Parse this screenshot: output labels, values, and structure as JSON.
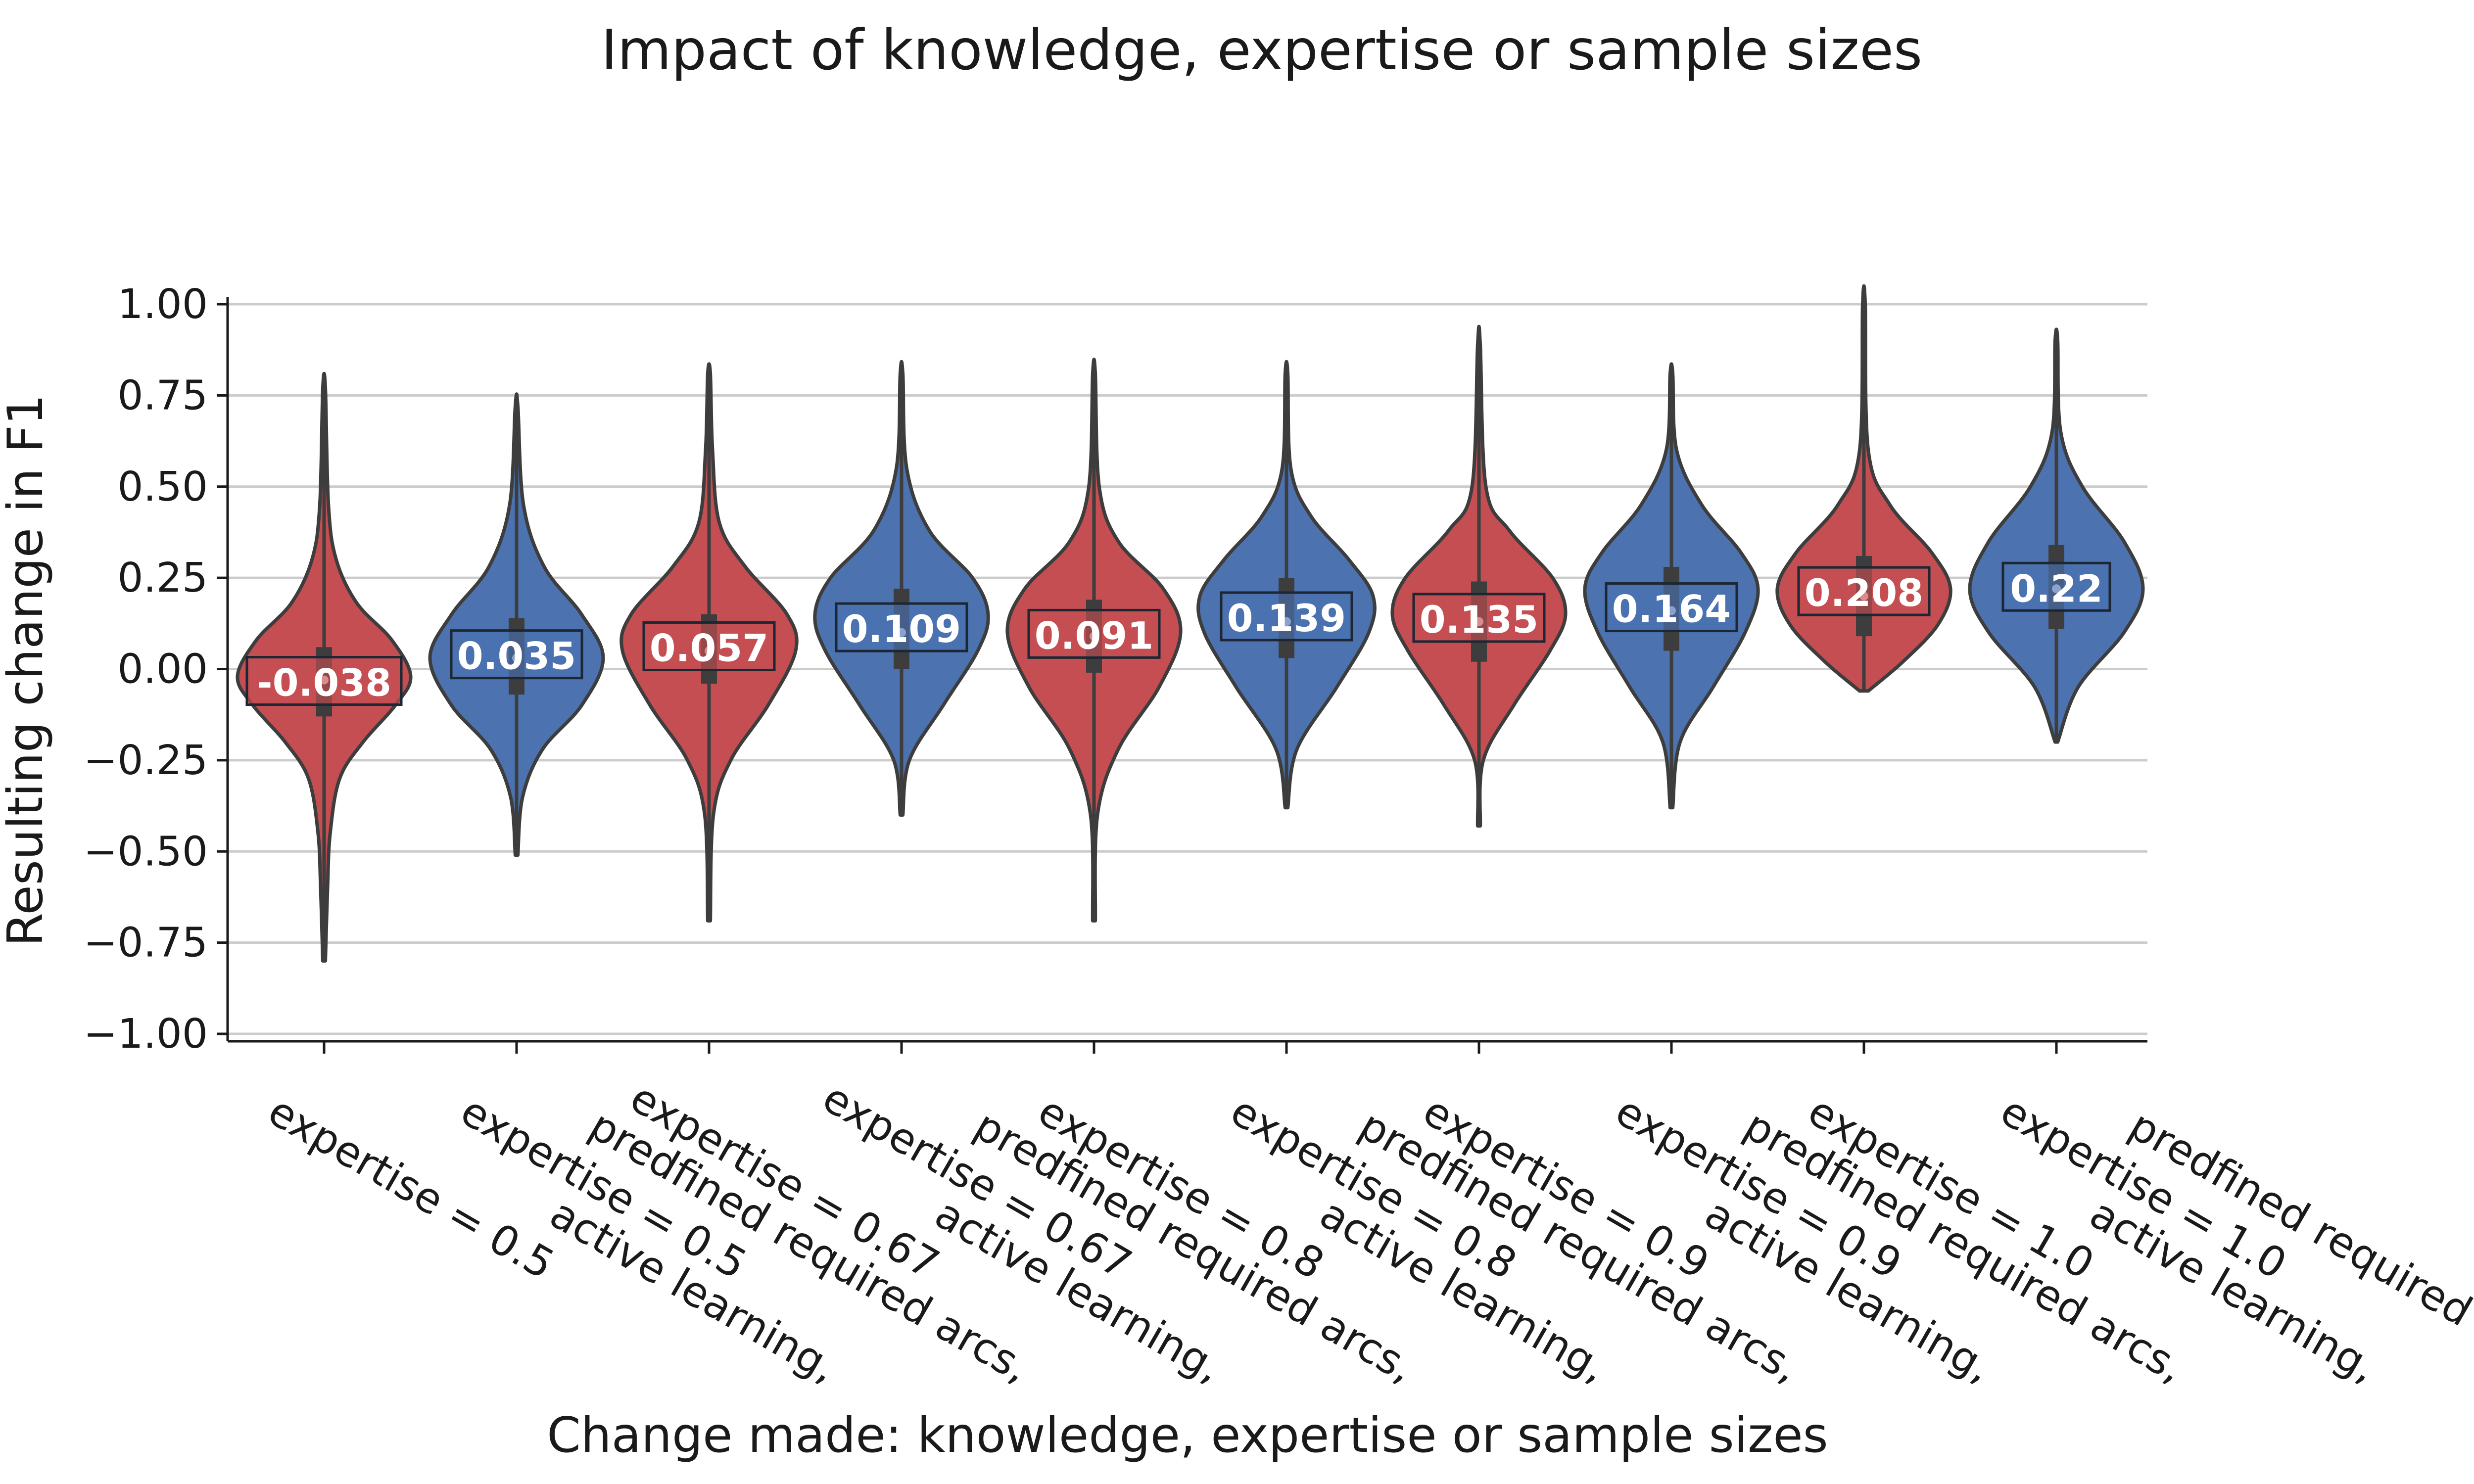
{
  "chart_data": {
    "type": "violin",
    "title": "Impact of knowledge, expertise or sample sizes",
    "xlabel": "Change made: knowledge, expertise or sample sizes",
    "ylabel": "Resulting change in F1",
    "ylim": [
      -1.0,
      1.0
    ],
    "yticks": [
      "1.00",
      "0.75",
      "0.50",
      "0.25",
      "0.00",
      "−0.25",
      "−0.50",
      "−0.75",
      "−1.00"
    ],
    "ytick_values": [
      1.0,
      0.75,
      0.5,
      0.25,
      0.0,
      -0.25,
      -0.5,
      -0.75,
      -1.0
    ],
    "grid": "horizontal",
    "colors": {
      "active_learning": "#c44e52",
      "predefined_arcs": "#4c72b0",
      "outline": "#3d3d3d"
    },
    "violins": [
      {
        "line1": "active learning,",
        "line2": "expertise = 0.5",
        "mean_label": "-0.038",
        "mean": -0.038,
        "median": -0.03,
        "q1": -0.13,
        "q3": 0.06,
        "min": -0.8,
        "max": 0.77,
        "group": "active_learning",
        "profile": [
          [
            -0.8,
            0.015
          ],
          [
            -0.6,
            0.04
          ],
          [
            -0.45,
            0.07
          ],
          [
            -0.3,
            0.18
          ],
          [
            -0.2,
            0.45
          ],
          [
            -0.1,
            0.82
          ],
          [
            -0.02,
            1.0
          ],
          [
            0.08,
            0.78
          ],
          [
            0.18,
            0.38
          ],
          [
            0.3,
            0.14
          ],
          [
            0.45,
            0.05
          ],
          [
            0.77,
            0.015
          ]
        ]
      },
      {
        "line1": "predfined required arcs,",
        "line2": "expertise = 0.5",
        "mean_label": "0.035",
        "mean": 0.035,
        "median": 0.03,
        "q1": -0.07,
        "q3": 0.14,
        "min": -0.51,
        "max": 0.72,
        "group": "predefined_arcs",
        "profile": [
          [
            -0.51,
            0.015
          ],
          [
            -0.35,
            0.07
          ],
          [
            -0.22,
            0.3
          ],
          [
            -0.1,
            0.75
          ],
          [
            0.03,
            1.0
          ],
          [
            0.15,
            0.75
          ],
          [
            0.28,
            0.32
          ],
          [
            0.45,
            0.08
          ],
          [
            0.72,
            0.015
          ]
        ]
      },
      {
        "line1": "active learning,",
        "line2": "expertise = 0.67",
        "mean_label": "0.057",
        "mean": 0.057,
        "median": 0.05,
        "q1": -0.04,
        "q3": 0.15,
        "min": -0.69,
        "max": 0.81,
        "group": "active_learning",
        "profile": [
          [
            -0.69,
            0.015
          ],
          [
            -0.4,
            0.05
          ],
          [
            -0.25,
            0.25
          ],
          [
            -0.1,
            0.68
          ],
          [
            0.05,
            1.0
          ],
          [
            0.15,
            0.9
          ],
          [
            0.28,
            0.42
          ],
          [
            0.4,
            0.12
          ],
          [
            0.6,
            0.04
          ],
          [
            0.81,
            0.015
          ]
        ]
      },
      {
        "line1": "predfined required arcs,",
        "line2": "expertise = 0.67",
        "mean_label": "0.109",
        "mean": 0.109,
        "median": 0.1,
        "q1": 0.0,
        "q3": 0.22,
        "min": -0.4,
        "max": 0.81,
        "group": "predefined_arcs",
        "profile": [
          [
            -0.4,
            0.015
          ],
          [
            -0.25,
            0.09
          ],
          [
            -0.1,
            0.48
          ],
          [
            0.05,
            0.88
          ],
          [
            0.15,
            1.0
          ],
          [
            0.25,
            0.82
          ],
          [
            0.38,
            0.32
          ],
          [
            0.55,
            0.06
          ],
          [
            0.81,
            0.015
          ]
        ]
      },
      {
        "line1": "active learning,",
        "line2": "expertise = 0.8",
        "mean_label": "0.091",
        "mean": 0.091,
        "median": 0.09,
        "q1": -0.01,
        "q3": 0.19,
        "min": -0.69,
        "max": 0.81,
        "group": "active_learning",
        "profile": [
          [
            -0.69,
            0.015
          ],
          [
            -0.4,
            0.04
          ],
          [
            -0.22,
            0.28
          ],
          [
            -0.05,
            0.75
          ],
          [
            0.1,
            1.0
          ],
          [
            0.22,
            0.8
          ],
          [
            0.35,
            0.28
          ],
          [
            0.5,
            0.06
          ],
          [
            0.81,
            0.015
          ]
        ]
      },
      {
        "line1": "predfined required arcs,",
        "line2": "expertise = 0.8",
        "mean_label": "0.139",
        "mean": 0.139,
        "median": 0.13,
        "q1": 0.03,
        "q3": 0.25,
        "min": -0.38,
        "max": 0.81,
        "group": "predefined_arcs",
        "profile": [
          [
            -0.38,
            0.015
          ],
          [
            -0.22,
            0.12
          ],
          [
            -0.05,
            0.58
          ],
          [
            0.1,
            0.95
          ],
          [
            0.2,
            1.0
          ],
          [
            0.3,
            0.72
          ],
          [
            0.42,
            0.28
          ],
          [
            0.55,
            0.05
          ],
          [
            0.81,
            0.015
          ]
        ]
      },
      {
        "line1": "active learning,",
        "line2": "expertise = 0.9",
        "mean_label": "0.135",
        "mean": 0.135,
        "median": 0.13,
        "q1": 0.02,
        "q3": 0.24,
        "min": -0.43,
        "max": 0.89,
        "group": "active_learning",
        "profile": [
          [
            -0.43,
            0.015
          ],
          [
            -0.25,
            0.05
          ],
          [
            -0.1,
            0.4
          ],
          [
            0.05,
            0.82
          ],
          [
            0.15,
            1.0
          ],
          [
            0.25,
            0.85
          ],
          [
            0.38,
            0.35
          ],
          [
            0.5,
            0.08
          ],
          [
            0.89,
            0.015
          ]
        ]
      },
      {
        "line1": "predfined required arcs,",
        "line2": "expertise = 0.9",
        "mean_label": "0.164",
        "mean": 0.164,
        "median": 0.16,
        "q1": 0.05,
        "q3": 0.28,
        "min": -0.38,
        "max": 0.81,
        "group": "predefined_arcs",
        "profile": [
          [
            -0.38,
            0.015
          ],
          [
            -0.2,
            0.1
          ],
          [
            -0.05,
            0.48
          ],
          [
            0.1,
            0.85
          ],
          [
            0.22,
            1.0
          ],
          [
            0.32,
            0.8
          ],
          [
            0.45,
            0.35
          ],
          [
            0.6,
            0.06
          ],
          [
            0.81,
            0.015
          ]
        ]
      },
      {
        "line1": "active learning,",
        "line2": "expertise = 1.0",
        "mean_label": "0.208",
        "mean": 0.208,
        "median": 0.2,
        "q1": 0.09,
        "q3": 0.31,
        "min": -0.06,
        "max": 1.0,
        "group": "active_learning",
        "profile": [
          [
            -0.06,
            0.05
          ],
          [
            0.02,
            0.45
          ],
          [
            0.12,
            0.85
          ],
          [
            0.22,
            1.0
          ],
          [
            0.32,
            0.78
          ],
          [
            0.45,
            0.3
          ],
          [
            0.6,
            0.05
          ],
          [
            1.0,
            0.015
          ]
        ]
      },
      {
        "line1": "predfined required arcs,",
        "line2": "expertise = 1.0",
        "mean_label": "0.22",
        "mean": 0.22,
        "median": 0.22,
        "q1": 0.11,
        "q3": 0.34,
        "min": -0.2,
        "max": 0.9,
        "group": "predefined_arcs",
        "profile": [
          [
            -0.2,
            0.015
          ],
          [
            -0.05,
            0.25
          ],
          [
            0.1,
            0.78
          ],
          [
            0.22,
            1.0
          ],
          [
            0.35,
            0.78
          ],
          [
            0.5,
            0.3
          ],
          [
            0.65,
            0.05
          ],
          [
            0.9,
            0.015
          ]
        ]
      }
    ]
  }
}
